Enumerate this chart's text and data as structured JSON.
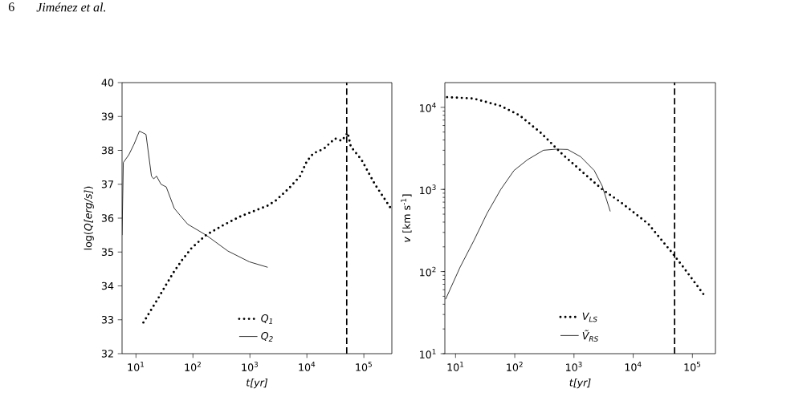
{
  "chart_data": [
    {
      "type": "line",
      "xlabel": "t[yr]",
      "ylabel": "log(*Q[erg/s]*)",
      "log": "x",
      "legend": "bottom",
      "annotations": [
        "6",
        "Jiménez et al."
      ],
      "xlim": [
        5.7,
        310000
      ],
      "ylim": [
        32,
        40
      ],
      "xticks": [
        {
          "value": 10,
          "label": "10$^{1}$"
        },
        {
          "value": 100,
          "label": "10$^{2}$"
        },
        {
          "value": 1000,
          "label": "10$^{3}$"
        },
        {
          "value": 10000,
          "label": "10$^{4}$"
        },
        {
          "value": 100000,
          "label": "10$^{5}$"
        }
      ],
      "yticks": [
        32,
        33,
        34,
        35,
        36,
        37,
        38,
        39,
        40
      ],
      "ref_lines": [
        {
          "axis": "x",
          "value": 50000,
          "line_style": "dashed",
          "color": "#000000"
        }
      ],
      "series": [
        {
          "name": "Q$_{1}$",
          "color": "#000000",
          "line_style": "dotted",
          "x": [
            13.5,
            17.8,
            24.5,
            34,
            47,
            65,
            95,
            170,
            330,
            700,
            2050,
            2900,
            4900,
            7600,
            10000,
            13000,
            20000,
            31000,
            41000,
            52000,
            59000,
            91000,
            156000,
            297000
          ],
          "values": [
            32.92,
            33.25,
            33.63,
            34.04,
            34.43,
            34.77,
            35.12,
            35.5,
            35.78,
            36.06,
            36.37,
            36.53,
            36.89,
            37.24,
            37.68,
            37.91,
            38.05,
            38.35,
            38.28,
            38.52,
            38.11,
            37.72,
            37.0,
            36.29
          ]
        },
        {
          "name": "Q$_{2}$",
          "color": "#000000",
          "line_style": "solid",
          "x": [
            5.7,
            6.0,
            7.5,
            9.3,
            11.5,
            15,
            18.7,
            20.5,
            23,
            27.5,
            34,
            47,
            59,
            81,
            170,
            410,
            980,
            2050
          ],
          "values": [
            35.5,
            37.64,
            37.87,
            38.19,
            38.57,
            38.47,
            37.24,
            37.16,
            37.24,
            37.0,
            36.92,
            36.29,
            36.09,
            35.82,
            35.5,
            35.03,
            34.71,
            34.55
          ]
        }
      ]
    },
    {
      "type": "line",
      "xlabel": "t[yr]",
      "ylabel": "*v* [km s$^{-1}$]",
      "log": "xy",
      "legend": "bottom",
      "xlim": [
        6.6,
        245000
      ],
      "ylim": [
        10,
        20000
      ],
      "xticks": [
        {
          "value": 10,
          "label": "10$^{1}$"
        },
        {
          "value": 100,
          "label": "10$^{2}$"
        },
        {
          "value": 1000,
          "label": "10$^{3}$"
        },
        {
          "value": 10000,
          "label": "10$^{4}$"
        },
        {
          "value": 100000,
          "label": "10$^{5}$"
        }
      ],
      "yticks": [
        {
          "value": 10,
          "label": "10$^{1}$"
        },
        {
          "value": 100,
          "label": "10$^{2}$"
        },
        {
          "value": 1000,
          "label": "10$^{3}$"
        },
        {
          "value": 10000,
          "label": "10$^{4}$"
        }
      ],
      "ref_lines": [
        {
          "axis": "x",
          "value": 50000,
          "line_style": "dashed",
          "color": "#000000"
        }
      ],
      "series": [
        {
          "name": "V$_{LS}$",
          "color": "#000000",
          "line_style": "dotted",
          "x": [
            7.2,
            20,
            58,
            120,
            275,
            630,
            1300,
            3000,
            6300,
            18000,
            44000,
            69000,
            163000
          ],
          "values": [
            13300,
            12800,
            10400,
            8000,
            4900,
            2700,
            1700,
            1000,
            690,
            380,
            174,
            115,
            50
          ]
        },
        {
          "name": "Ṽ$_{RS}$",
          "color": "#000000",
          "line_style": "solid",
          "x": [
            6.8,
            12,
            20.5,
            34,
            58,
            97,
            164,
            305,
            510,
            780,
            1300,
            2200,
            3000,
            4100
          ],
          "values": [
            46,
            114,
            240,
            510,
            1000,
            1700,
            2300,
            3000,
            3100,
            3070,
            2500,
            1700,
            1100,
            540
          ]
        }
      ]
    }
  ]
}
